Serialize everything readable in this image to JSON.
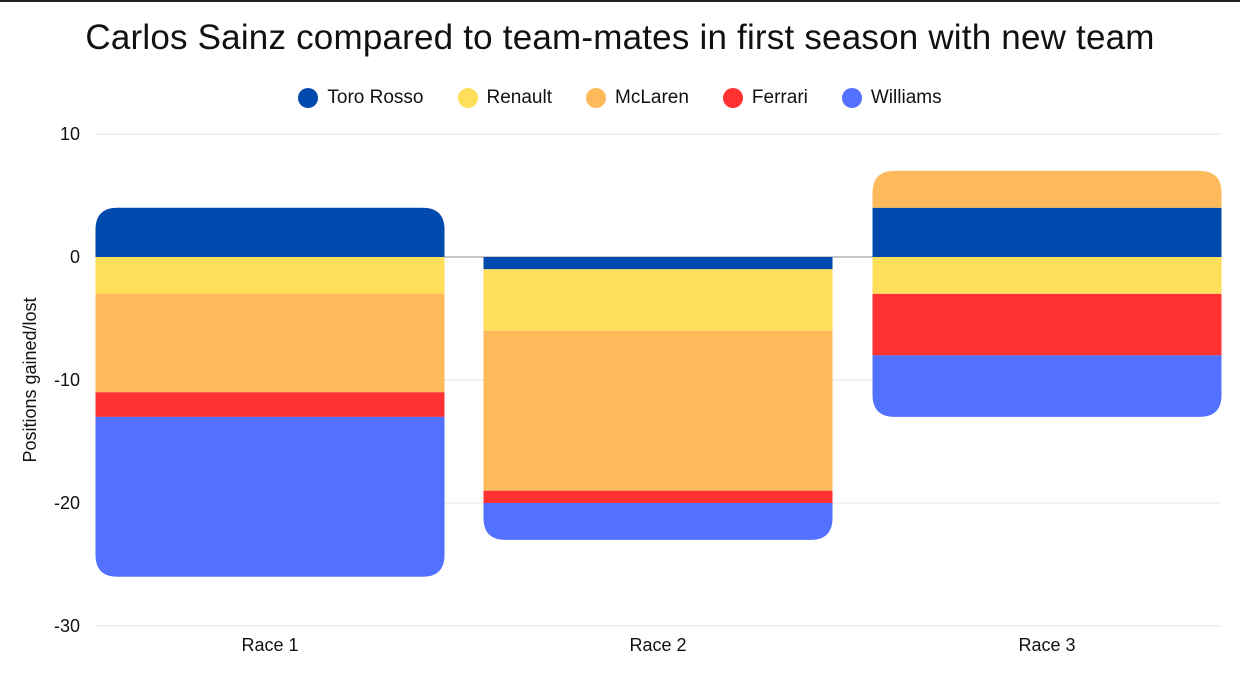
{
  "chart_data": {
    "type": "bar",
    "stacked": true,
    "title": "Carlos Sainz compared to team-mates in first season with new team",
    "xlabel": "",
    "ylabel": "Positions gained/lost",
    "ylim": [
      -30,
      10
    ],
    "yticks": [
      "10",
      "0",
      "-10",
      "-20",
      "-30"
    ],
    "ytick_values": [
      10,
      0,
      -10,
      -20,
      -30
    ],
    "categories": [
      "Race 1",
      "Race 2",
      "Race 3"
    ],
    "legend_position": "top-center",
    "grid": true,
    "series": [
      {
        "name": "Toro Rosso",
        "color": "#004AAD",
        "values": [
          4,
          -1,
          4
        ]
      },
      {
        "name": "Renault",
        "color": "#FFDE59",
        "values": [
          -3,
          -5,
          -3
        ]
      },
      {
        "name": "McLaren",
        "color": "#FCBA5B",
        "values": [
          -8,
          -13,
          3
        ]
      },
      {
        "name": "Ferrari",
        "color": "#FF3131",
        "values": [
          -2,
          -1,
          -5
        ]
      },
      {
        "name": "Williams",
        "color": "#5271FF",
        "values": [
          -13,
          -3,
          -5
        ]
      }
    ]
  }
}
